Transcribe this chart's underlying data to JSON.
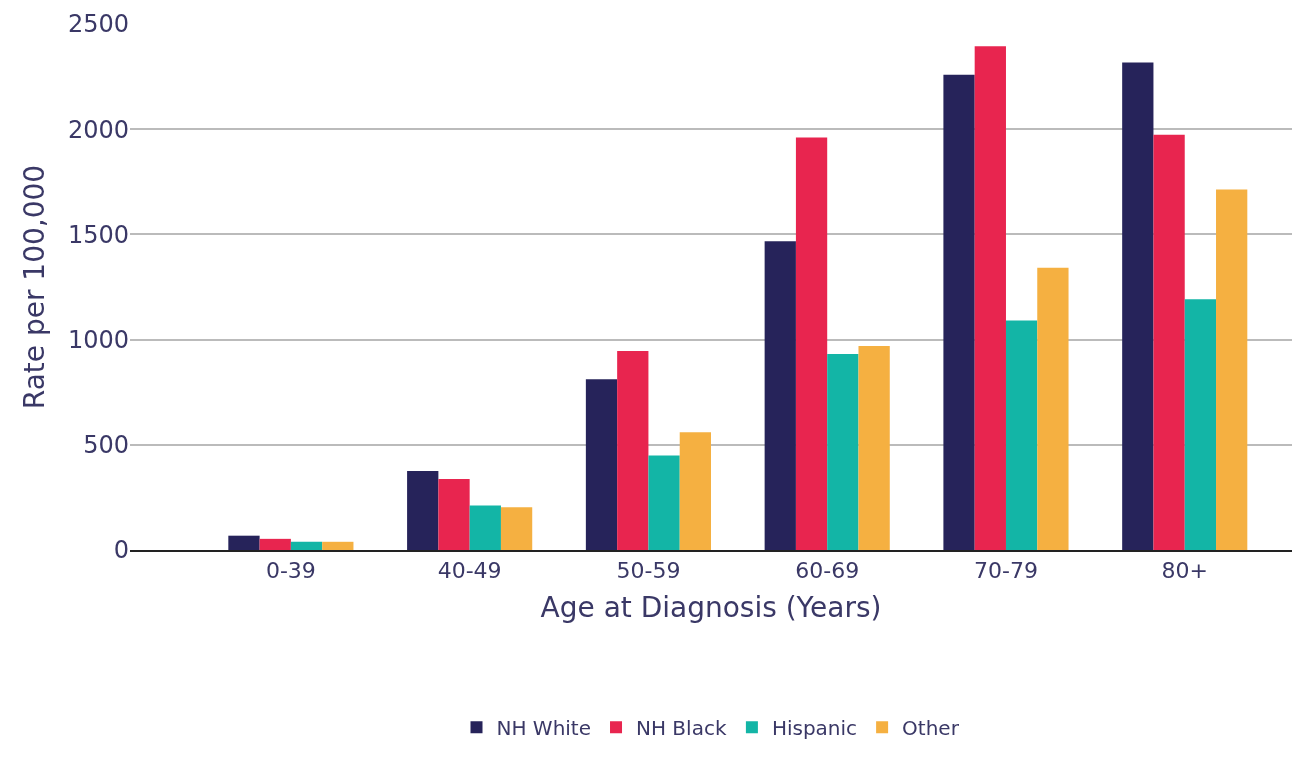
{
  "chart_data": {
    "type": "bar",
    "xlabel": "Age at Diagnosis (Years)",
    "ylabel": "Rate per 100,000",
    "categories": [
      "0-39",
      "40-49",
      "50-59",
      "60-69",
      "70-79",
      "80+"
    ],
    "series": [
      {
        "name": "NH White",
        "color": "#26235a",
        "values": [
          68,
          376,
          811,
          1467,
          2259,
          2317
        ]
      },
      {
        "name": "NH Black",
        "color": "#e8254f",
        "values": [
          53,
          338,
          946,
          1960,
          2394,
          1974
        ]
      },
      {
        "name": "Hispanic",
        "color": "#13b5a6",
        "values": [
          39,
          212,
          449,
          931,
          1091,
          1192
        ]
      },
      {
        "name": "Other",
        "color": "#f5b041",
        "values": [
          39,
          203,
          560,
          970,
          1342,
          1713
        ]
      }
    ],
    "ylim": [
      0,
      2500
    ],
    "yticks": [
      0,
      500,
      1000,
      1500,
      2000,
      2500
    ],
    "grid": "y",
    "legend": "bottom"
  }
}
